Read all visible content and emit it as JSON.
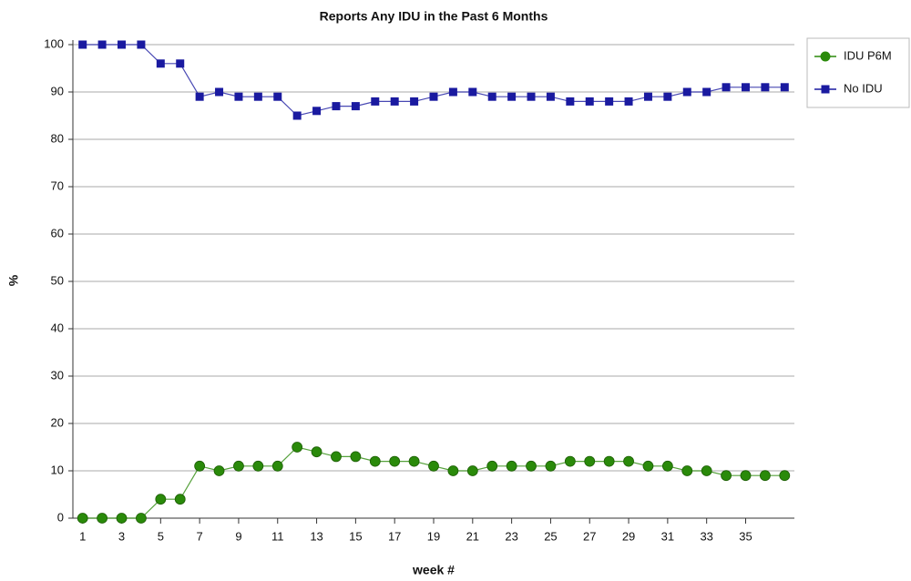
{
  "chart_data": {
    "type": "line",
    "title": "Reports Any IDU in the Past 6 Months",
    "x_label": "week #",
    "y_label": "%",
    "x": [
      1,
      2,
      3,
      4,
      5,
      6,
      7,
      8,
      9,
      10,
      11,
      12,
      13,
      14,
      15,
      16,
      17,
      18,
      19,
      20,
      21,
      22,
      23,
      24,
      25,
      26,
      27,
      28,
      29,
      30,
      31,
      32,
      33,
      34,
      35,
      36,
      37
    ],
    "series": [
      {
        "name": "IDU P6M",
        "color": "#2a8a0a",
        "marker": "circle",
        "values": [
          0,
          0,
          0,
          0,
          4,
          4,
          11,
          10,
          11,
          11,
          11,
          15,
          14,
          13,
          13,
          12,
          12,
          12,
          11,
          10,
          10,
          11,
          11,
          11,
          11,
          12,
          12,
          12,
          12,
          11,
          11,
          10,
          10,
          9,
          9,
          9,
          9
        ]
      },
      {
        "name": "No IDU",
        "color": "#1a1aa0",
        "marker": "square",
        "values": [
          100,
          100,
          100,
          100,
          96,
          96,
          89,
          90,
          89,
          89,
          89,
          85,
          86,
          87,
          87,
          88,
          88,
          88,
          89,
          90,
          90,
          89,
          89,
          89,
          89,
          88,
          88,
          88,
          88,
          89,
          89,
          90,
          90,
          91,
          91,
          91,
          91
        ]
      }
    ],
    "xlim": [
      0.5,
      37.5
    ],
    "xticks": [
      1,
      3,
      5,
      7,
      9,
      11,
      13,
      15,
      17,
      19,
      21,
      23,
      25,
      27,
      29,
      31,
      33,
      35
    ],
    "ylim": [
      0,
      100
    ],
    "yticks": [
      0,
      10,
      20,
      30,
      40,
      50,
      60,
      70,
      80,
      90,
      100
    ],
    "grid": true,
    "legend": "right"
  }
}
